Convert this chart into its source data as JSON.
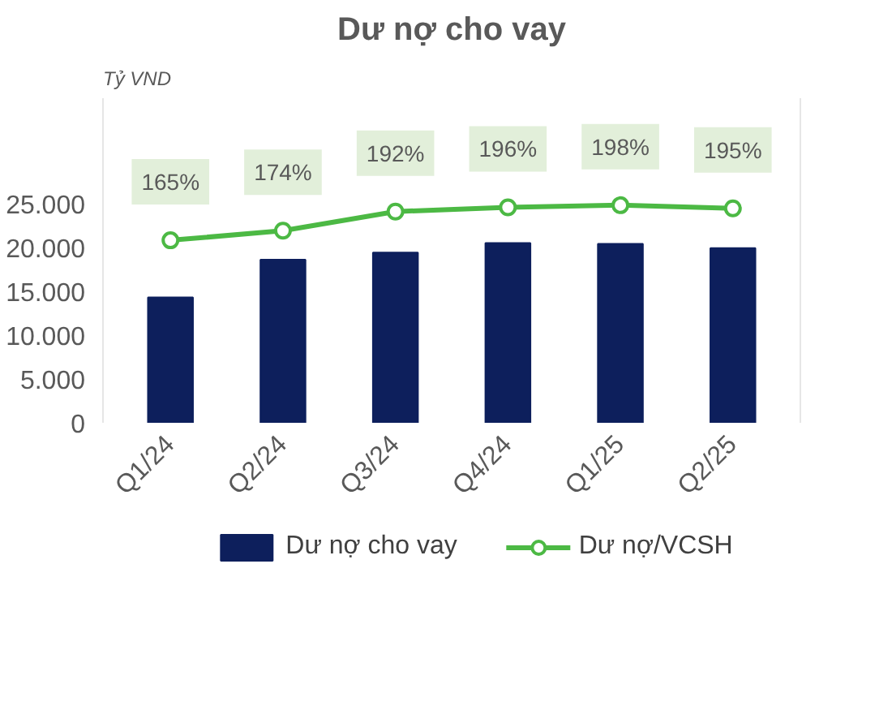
{
  "chart_data": {
    "type": "bar",
    "title": "Dư nợ cho vay",
    "ylabel": "Tỷ VND",
    "categories": [
      "Q1/24",
      "Q2/24",
      "Q3/24",
      "Q4/24",
      "Q1/25",
      "Q2/25"
    ],
    "series": [
      {
        "name": "Dư nợ cho vay",
        "color": "#0d1f5c",
        "values": [
          14300,
          18600,
          19400,
          20500,
          20400,
          19900
        ]
      },
      {
        "name": "Dư nợ/VCSH",
        "type": "line",
        "axis": "y2",
        "color": "#4cb944",
        "marker": "circle",
        "values": [
          165,
          174,
          192,
          196,
          198,
          195
        ],
        "value_labels": [
          "165%",
          "174%",
          "192%",
          "196%",
          "198%",
          "195%"
        ]
      }
    ],
    "ylim": [
      0,
      37000
    ],
    "yticks": [
      {
        "value": 0,
        "label": "0"
      },
      {
        "value": 5000,
        "label": "5.000"
      },
      {
        "value": 10000,
        "label": "10.000"
      },
      {
        "value": 15000,
        "label": "15.000"
      },
      {
        "value": 20000,
        "label": "20.000"
      },
      {
        "value": 25000,
        "label": "25.000"
      }
    ],
    "y2lim": [
      -6.6,
      298.6
    ],
    "tick_labels": "y",
    "grid": false,
    "legend": "bottom"
  }
}
